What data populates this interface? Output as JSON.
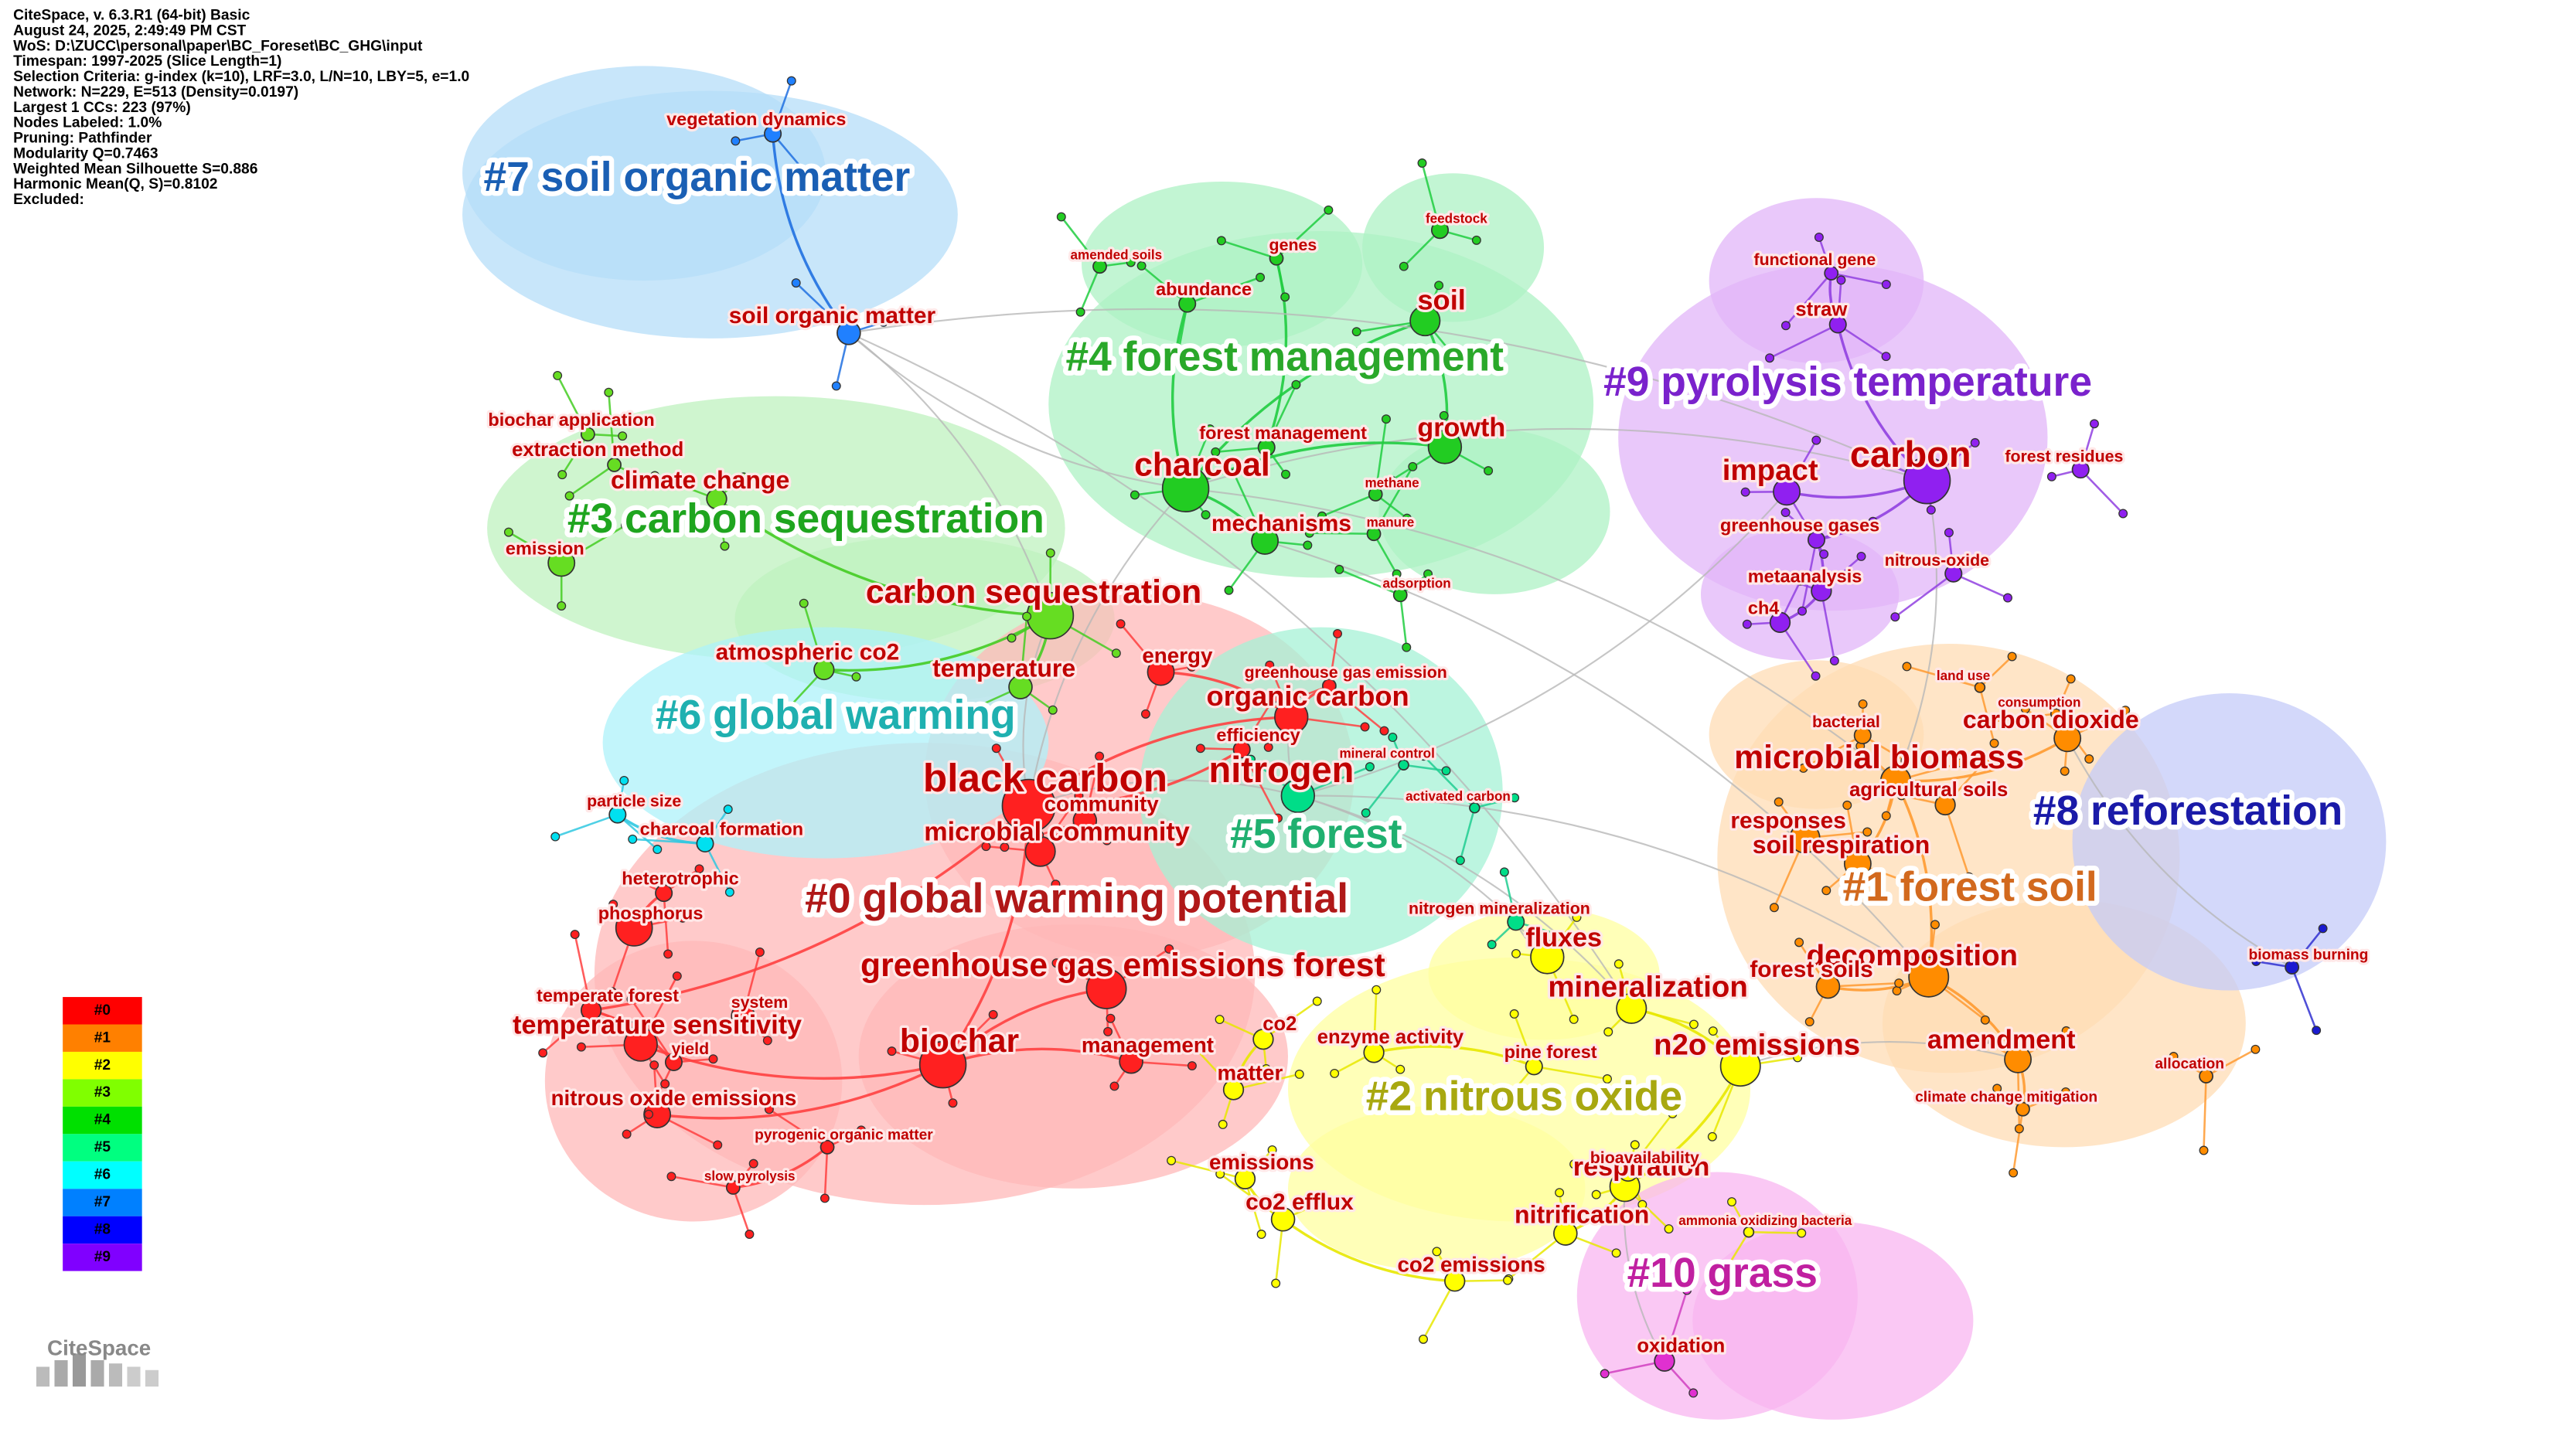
{
  "header": {
    "lines": [
      "CiteSpace, v. 6.3.R1 (64-bit) Basic",
      "August 24, 2025, 2:49:49 PM CST",
      "WoS: D:\\ZUCC\\personal\\paper\\BC_Foreset\\BC_GHG\\input",
      "Timespan: 1997-2025 (Slice Length=1)",
      "Selection Criteria: g-index (k=10), LRF=3.0, L/N=10, LBY=5, e=1.0",
      "Network: N=229, E=513 (Density=0.0197)",
      "Largest 1 CCs: 223 (97%)",
      "Nodes Labeled: 1.0%",
      "Pruning: Pathfinder",
      "Modularity Q=0.7463",
      "Weighted Mean Silhouette S=0.886",
      "Harmonic Mean(Q, S)=0.8102",
      "Excluded:"
    ]
  },
  "clusters": [
    {
      "label": "#0 global warming potential",
      "color": "#b01818"
    },
    {
      "label": "#1 forest soil",
      "color": "#d2691e"
    },
    {
      "label": "#2 nitrous oxide",
      "color": "#a8a810"
    },
    {
      "label": "#3 carbon sequestration",
      "color": "#1fa51f"
    },
    {
      "label": "#4 forest management",
      "color": "#2aa82a"
    },
    {
      "label": "#5 forest",
      "color": "#20b070"
    },
    {
      "label": "#6 global warming",
      "color": "#1fb0b0"
    },
    {
      "label": "#7 soil organic matter",
      "color": "#1a5fb4"
    },
    {
      "label": "#8 reforestation",
      "color": "#1a1aa8"
    },
    {
      "label": "#9 pyrolysis temperature",
      "color": "#7a22cc"
    },
    {
      "label": "#10 grass",
      "color": "#c020a0"
    }
  ],
  "keywords": [
    {
      "label": "black carbon"
    },
    {
      "label": "nitrogen"
    },
    {
      "label": "biochar"
    },
    {
      "label": "charcoal"
    },
    {
      "label": "carbon sequestration"
    },
    {
      "label": "organic carbon"
    },
    {
      "label": "microbial biomass"
    },
    {
      "label": "carbon"
    },
    {
      "label": "impact"
    },
    {
      "label": "decomposition"
    },
    {
      "label": "mineralization"
    },
    {
      "label": "n2o emissions"
    },
    {
      "label": "amendment"
    },
    {
      "label": "fluxes"
    },
    {
      "label": "respiration"
    },
    {
      "label": "nitrification"
    },
    {
      "label": "co2 emissions"
    },
    {
      "label": "co2 efflux"
    },
    {
      "label": "emissions"
    },
    {
      "label": "soil"
    },
    {
      "label": "growth"
    },
    {
      "label": "mechanisms"
    },
    {
      "label": "soil organic matter"
    },
    {
      "label": "climate change"
    },
    {
      "label": "temperature sensitivity"
    },
    {
      "label": "temperature"
    },
    {
      "label": "atmospheric co2"
    },
    {
      "label": "energy"
    },
    {
      "label": "greenhouse gas emissions forest"
    },
    {
      "label": "microbial community"
    },
    {
      "label": "community"
    },
    {
      "label": "soil respiration"
    },
    {
      "label": "forest soils"
    },
    {
      "label": "carbon dioxide"
    },
    {
      "label": "agricultural soils"
    },
    {
      "label": "vegetation dynamics"
    },
    {
      "label": "nitrous oxide emissions"
    },
    {
      "label": "management"
    },
    {
      "label": "greenhouse gases"
    },
    {
      "label": "metaanalysis"
    },
    {
      "label": "ch4"
    },
    {
      "label": "straw"
    },
    {
      "label": "functional gene"
    },
    {
      "label": "phosphorus"
    },
    {
      "label": "heterotrophic"
    },
    {
      "label": "charcoal formation"
    },
    {
      "label": "particle size"
    },
    {
      "label": "temperate forest"
    },
    {
      "label": "yield"
    },
    {
      "label": "pyrogenic organic matter"
    },
    {
      "label": "slow pyrolysis"
    },
    {
      "label": "oxidation"
    },
    {
      "label": "extraction method"
    },
    {
      "label": "biochar application"
    },
    {
      "label": "abundance"
    },
    {
      "label": "genes"
    },
    {
      "label": "forest management"
    },
    {
      "label": "enzyme activity"
    },
    {
      "label": "pine forest"
    },
    {
      "label": "matter"
    },
    {
      "label": "co2"
    },
    {
      "label": "efficiency"
    },
    {
      "label": "greenhouse gas emission"
    },
    {
      "label": "nitrogen mineralization"
    },
    {
      "label": "responses"
    },
    {
      "label": "allocation"
    },
    {
      "label": "biomass burning"
    },
    {
      "label": "forest residues"
    },
    {
      "label": "nitrous-oxide"
    },
    {
      "label": "ammonia oxidizing bacteria"
    },
    {
      "label": "climate change mitigation"
    },
    {
      "label": "land use"
    },
    {
      "label": "consumption"
    },
    {
      "label": "bacterial"
    },
    {
      "label": "mineral control"
    },
    {
      "label": "activated carbon"
    },
    {
      "label": "adsorption"
    },
    {
      "label": "manure"
    },
    {
      "label": "methane"
    },
    {
      "label": "feedstock"
    },
    {
      "label": "amended soils"
    },
    {
      "label": "emission"
    },
    {
      "label": "bioavailability"
    },
    {
      "label": "system"
    }
  ],
  "legend": [
    {
      "label": "#0",
      "color": "#ff0000"
    },
    {
      "label": "#1",
      "color": "#ff8000"
    },
    {
      "label": "#2",
      "color": "#ffff00"
    },
    {
      "label": "#3",
      "color": "#80ff00"
    },
    {
      "label": "#4",
      "color": "#00e000"
    },
    {
      "label": "#5",
      "color": "#00ff80"
    },
    {
      "label": "#6",
      "color": "#00ffff"
    },
    {
      "label": "#7",
      "color": "#0080ff"
    },
    {
      "label": "#8",
      "color": "#0000ff"
    },
    {
      "label": "#9",
      "color": "#8000ff"
    }
  ],
  "logo": "CiteSpace"
}
